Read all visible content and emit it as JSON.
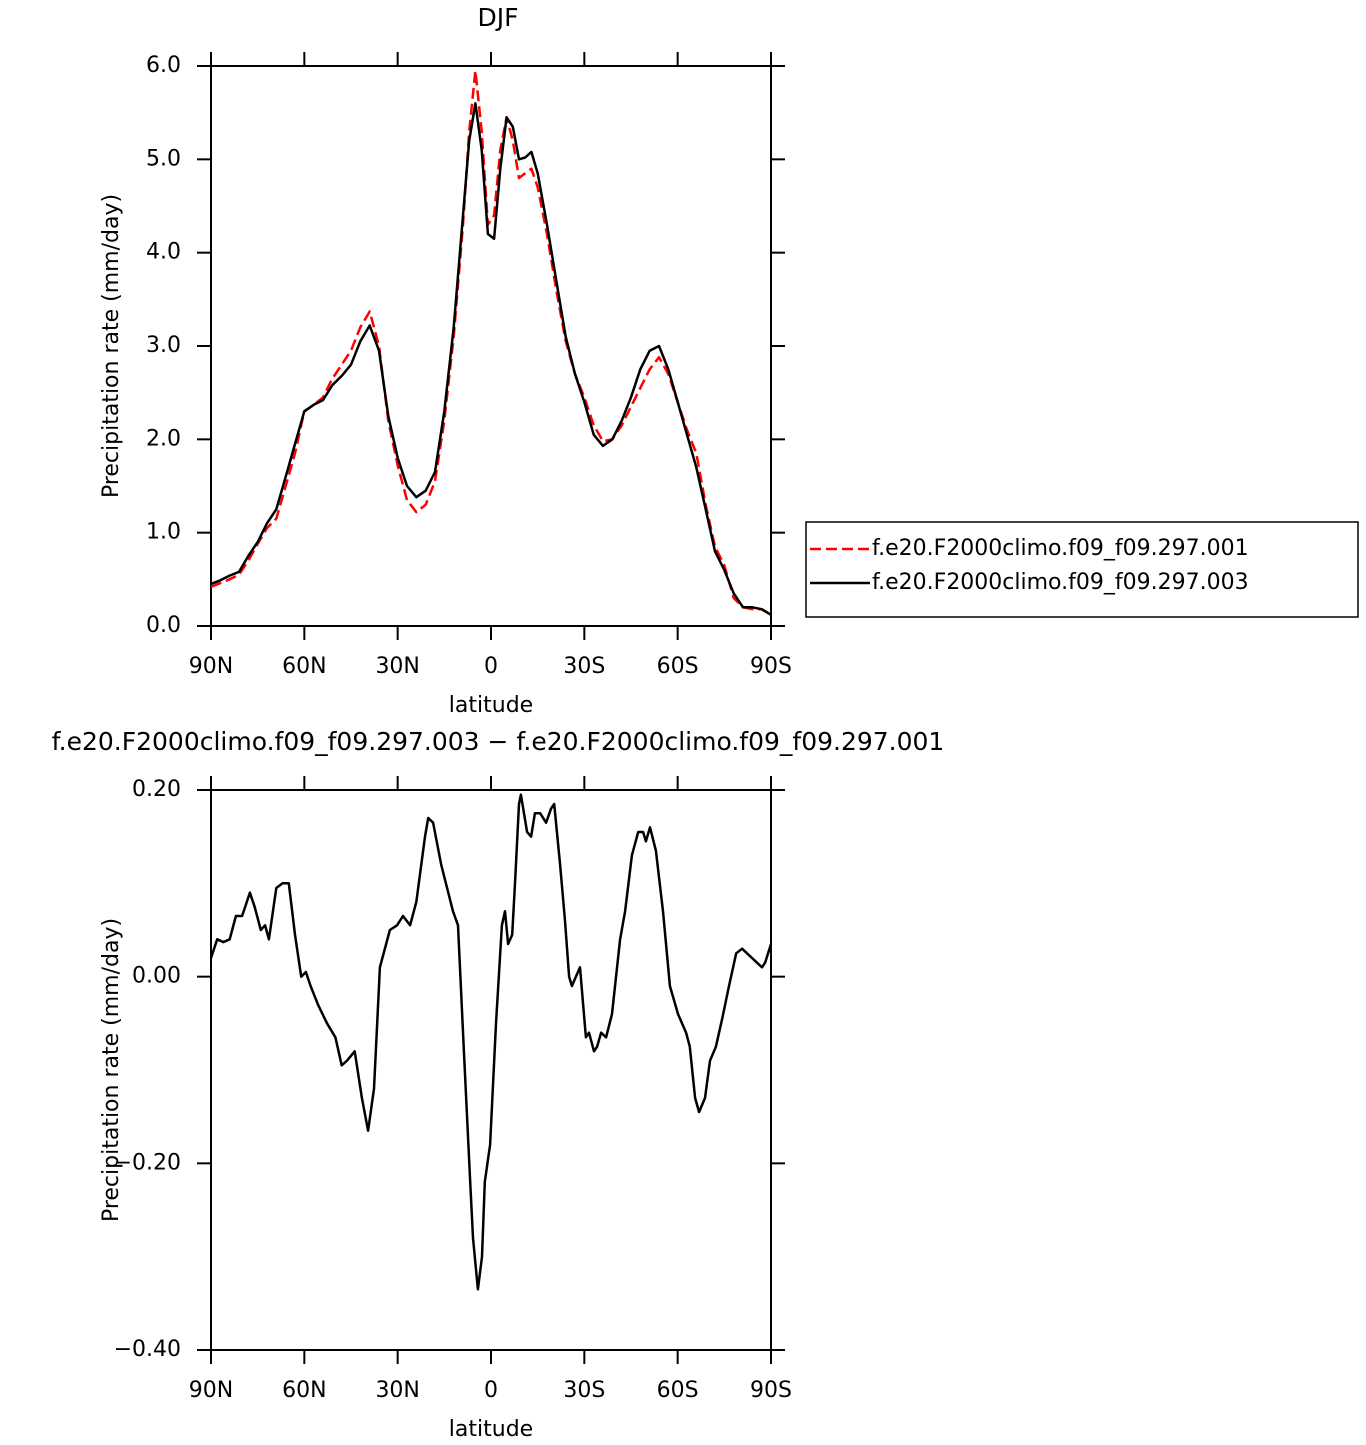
{
  "chart_data": [
    {
      "type": "line",
      "title": "DJF",
      "xlabel": "latitude",
      "ylabel": "Precipitation rate (mm/day)",
      "x": [
        90,
        87,
        84,
        81,
        78,
        75,
        72,
        69,
        66,
        63,
        60,
        57,
        54,
        51,
        48,
        45,
        42,
        39,
        36,
        33,
        30,
        27,
        24,
        21,
        18,
        15,
        12,
        9,
        7,
        5,
        3,
        1,
        -1,
        -3,
        -5,
        -7,
        -9,
        -11,
        -13,
        -15,
        -18,
        -21,
        -24,
        -27,
        -30,
        -33,
        -36,
        -39,
        -42,
        -45,
        -48,
        -51,
        -54,
        -57,
        -60,
        -63,
        -66,
        -69,
        -72,
        -75,
        -78,
        -81,
        -84,
        -87,
        -90
      ],
      "xlim": [
        90,
        -90
      ],
      "xticks": [
        {
          "value": 90,
          "label": "90N"
        },
        {
          "value": 60,
          "label": "60N"
        },
        {
          "value": 30,
          "label": "30N"
        },
        0,
        {
          "value": -30,
          "label": "30S"
        },
        {
          "value": -60,
          "label": "60S"
        },
        {
          "value": -90,
          "label": "90S"
        }
      ],
      "ylim": [
        0,
        6
      ],
      "yticks": [
        {
          "value": 0,
          "label": "0.0"
        },
        {
          "value": 1,
          "label": "1.0"
        },
        {
          "value": 2,
          "label": "2.0"
        },
        {
          "value": 3,
          "label": "3.0"
        },
        {
          "value": 4,
          "label": "4.0"
        },
        {
          "value": 5,
          "label": "5.0"
        },
        {
          "value": 6,
          "label": "6.0"
        }
      ],
      "legend": "right",
      "series": [
        {
          "name": "f.e20.F2000climo.f09_f09.297.001",
          "color": "#ff0000",
          "dash": "dashed",
          "values": [
            0.42,
            0.46,
            0.5,
            0.55,
            0.7,
            0.88,
            1.05,
            1.15,
            1.5,
            1.85,
            2.3,
            2.37,
            2.45,
            2.65,
            2.8,
            2.95,
            3.2,
            3.37,
            3.0,
            2.2,
            1.72,
            1.35,
            1.22,
            1.3,
            1.55,
            2.2,
            3.1,
            4.3,
            5.3,
            5.95,
            5.3,
            4.3,
            4.4,
            5.1,
            5.45,
            5.2,
            4.8,
            4.85,
            4.9,
            4.7,
            4.2,
            3.6,
            3.05,
            2.7,
            2.45,
            2.15,
            1.98,
            2.0,
            2.15,
            2.35,
            2.55,
            2.75,
            2.88,
            2.7,
            2.4,
            2.1,
            1.85,
            1.3,
            0.85,
            0.65,
            0.3,
            0.2,
            0.18,
            0.18,
            0.12
          ]
        },
        {
          "name": "f.e20.F2000climo.f09_f09.297.003",
          "color": "#000000",
          "dash": "solid",
          "values": [
            0.45,
            0.49,
            0.54,
            0.58,
            0.75,
            0.9,
            1.1,
            1.25,
            1.6,
            1.95,
            2.3,
            2.37,
            2.42,
            2.58,
            2.68,
            2.8,
            3.05,
            3.22,
            2.95,
            2.25,
            1.8,
            1.5,
            1.38,
            1.45,
            1.65,
            2.3,
            3.2,
            4.4,
            5.2,
            5.6,
            5.1,
            4.2,
            4.15,
            4.9,
            5.45,
            5.35,
            5.0,
            5.02,
            5.08,
            4.85,
            4.3,
            3.7,
            3.1,
            2.7,
            2.4,
            2.05,
            1.93,
            2.0,
            2.2,
            2.45,
            2.75,
            2.95,
            3.0,
            2.75,
            2.4,
            2.05,
            1.7,
            1.25,
            0.8,
            0.6,
            0.35,
            0.2,
            0.2,
            0.18,
            0.12
          ]
        }
      ]
    },
    {
      "type": "line",
      "title": "f.e20.F2000climo.f09_f09.297.003 − f.e20.F2000climo.f09_f09.297.001",
      "xlabel": "latitude",
      "ylabel": "Precipitation rate (mm/day)",
      "x": [
        90,
        88,
        86,
        84,
        82,
        80,
        77.5,
        76,
        74,
        72.6,
        71.4,
        69,
        67,
        65,
        63,
        61,
        59.5,
        58,
        55.6,
        52.7,
        50,
        48,
        46.3,
        43.8,
        41.5,
        39.5,
        37.6,
        35.7,
        32.5,
        30.2,
        28.3,
        26,
        24,
        21.2,
        20.2,
        18.6,
        16,
        14.5,
        12.2,
        10.6,
        8.7,
        6.7,
        5.8,
        4.2,
        2.9,
        2,
        0.3,
        -1.6,
        -3.5,
        -4.5,
        -5.5,
        -6.8,
        -7.7,
        -9,
        -9.6,
        -11.6,
        -12.9,
        -14.1,
        -15.8,
        -17.7,
        -19.3,
        -20.3,
        -22.2,
        -23.8,
        -25.1,
        -26,
        -27.3,
        -28.6,
        -30.5,
        -31.5,
        -33.1,
        -34.1,
        -35.4,
        -37,
        -38.9,
        -41.5,
        -43.1,
        -45.3,
        -47.3,
        -48.9,
        -49.8,
        -51.1,
        -53,
        -55.3,
        -57.5,
        -60.1,
        -62.7,
        -63.9,
        -65.6,
        -66.9,
        -68.8,
        -70.4,
        -72.3,
        -74.3,
        -76.5,
        -78.8,
        -80.7,
        -82.3,
        -83.9,
        -85.5,
        -87.1,
        -88.1,
        -90
      ],
      "xlim": [
        90,
        -90
      ],
      "xticks": [
        {
          "value": 90,
          "label": "90N"
        },
        {
          "value": 60,
          "label": "60N"
        },
        {
          "value": 30,
          "label": "30N"
        },
        0,
        {
          "value": -30,
          "label": "30S"
        },
        {
          "value": -60,
          "label": "60S"
        },
        {
          "value": -90,
          "label": "90S"
        }
      ],
      "ylim": [
        -0.4,
        0.2
      ],
      "yticks": [
        {
          "value": -0.4,
          "label": "−0.40"
        },
        {
          "value": -0.2,
          "label": "−0.20"
        },
        {
          "value": 0,
          "label": "0.00"
        },
        {
          "value": 0.2,
          "label": "0.20"
        }
      ],
      "series": [
        {
          "color": "#000000",
          "dash": "solid",
          "values": [
            0.02,
            0.04,
            0.037,
            0.04,
            0.065,
            0.065,
            0.09,
            0.075,
            0.05,
            0.055,
            0.04,
            0.095,
            0.1,
            0.1,
            0.045,
            0.0,
            0.005,
            -0.01,
            -0.03,
            -0.05,
            -0.065,
            -0.095,
            -0.09,
            -0.08,
            -0.13,
            -0.165,
            -0.12,
            0.01,
            0.05,
            0.055,
            0.065,
            0.055,
            0.08,
            0.15,
            0.17,
            0.165,
            0.12,
            0.1,
            0.07,
            0.055,
            -0.08,
            -0.22,
            -0.28,
            -0.335,
            -0.3,
            -0.22,
            -0.18,
            -0.05,
            0.055,
            0.07,
            0.035,
            0.045,
            0.1,
            0.185,
            0.195,
            0.155,
            0.15,
            0.175,
            0.175,
            0.165,
            0.18,
            0.185,
            0.12,
            0.06,
            0.0,
            -0.01,
            0.0,
            0.01,
            -0.065,
            -0.06,
            -0.08,
            -0.075,
            -0.06,
            -0.065,
            -0.04,
            0.04,
            0.07,
            0.13,
            0.155,
            0.155,
            0.145,
            0.16,
            0.135,
            0.07,
            -0.01,
            -0.04,
            -0.06,
            -0.075,
            -0.13,
            -0.145,
            -0.13,
            -0.09,
            -0.075,
            -0.045,
            -0.01,
            0.025,
            0.03,
            0.025,
            0.02,
            0.015,
            0.01,
            0.015,
            0.035
          ]
        }
      ]
    }
  ]
}
